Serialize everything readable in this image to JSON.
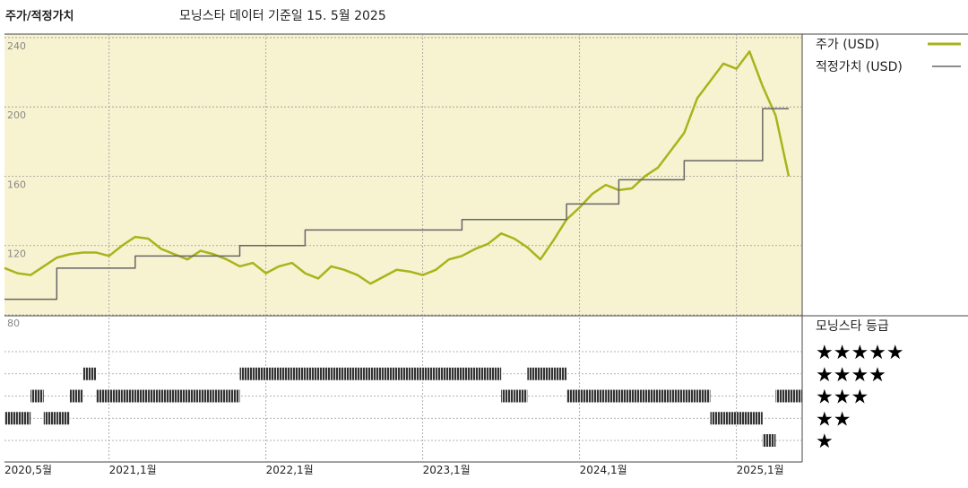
{
  "chart_data": {
    "type": "line",
    "title": "주가/적정가치",
    "subtitle": "모닝스타 데이터 기준일 15. 5월 2025",
    "x": [
      "2020-05",
      "2020-06",
      "2020-07",
      "2020-08",
      "2020-09",
      "2020-10",
      "2020-11",
      "2020-12",
      "2021-01",
      "2021-02",
      "2021-03",
      "2021-04",
      "2021-05",
      "2021-06",
      "2021-07",
      "2021-08",
      "2021-09",
      "2021-10",
      "2021-11",
      "2021-12",
      "2022-01",
      "2022-02",
      "2022-03",
      "2022-04",
      "2022-05",
      "2022-06",
      "2022-07",
      "2022-08",
      "2022-09",
      "2022-10",
      "2022-11",
      "2022-12",
      "2023-01",
      "2023-02",
      "2023-03",
      "2023-04",
      "2023-05",
      "2023-06",
      "2023-07",
      "2023-08",
      "2023-09",
      "2023-10",
      "2023-11",
      "2023-12",
      "2024-01",
      "2024-02",
      "2024-03",
      "2024-04",
      "2024-05",
      "2024-06",
      "2024-07",
      "2024-08",
      "2024-09",
      "2024-10",
      "2024-11",
      "2024-12",
      "2025-01",
      "2025-02",
      "2025-03",
      "2025-04",
      "2025-05"
    ],
    "xticks": [
      {
        "value": "2020-05",
        "label": "2020,5월"
      },
      {
        "value": "2021-01",
        "label": "2021,1월"
      },
      {
        "value": "2022-01",
        "label": "2022,1월"
      },
      {
        "value": "2023-01",
        "label": "2023,1월"
      },
      {
        "value": "2024-01",
        "label": "2024,1월"
      },
      {
        "value": "2025-01",
        "label": "2025,1월"
      }
    ],
    "ylim": [
      80,
      241
    ],
    "yticks": [
      80,
      120,
      160,
      200,
      240
    ],
    "grid": true,
    "series": [
      {
        "name": "주가 (USD)",
        "color": "#a9b31c",
        "values": [
          107,
          104,
          103,
          108,
          113,
          115,
          116,
          116,
          114,
          120,
          125,
          124,
          118,
          115,
          112,
          117,
          115,
          112,
          108,
          110,
          104,
          108,
          110,
          104,
          101,
          108,
          106,
          103,
          98,
          102,
          106,
          105,
          103,
          106,
          112,
          114,
          118,
          121,
          127,
          124,
          119,
          112,
          123,
          135,
          142,
          150,
          155,
          152,
          153,
          160,
          165,
          175,
          185,
          205,
          215,
          225,
          222,
          232,
          212,
          195,
          160
        ]
      },
      {
        "name": "적정가치 (USD)",
        "color": "#666666",
        "step": true,
        "values": [
          89,
          89,
          89,
          89,
          107,
          107,
          107,
          107,
          107,
          107,
          114,
          114,
          114,
          114,
          114,
          114,
          114,
          114,
          120,
          120,
          120,
          120,
          120,
          129,
          129,
          129,
          129,
          129,
          129,
          129,
          129,
          129,
          129,
          129,
          129,
          135,
          135,
          135,
          135,
          135,
          135,
          135,
          135,
          144,
          144,
          144,
          144,
          158,
          158,
          158,
          158,
          158,
          169,
          169,
          169,
          169,
          169,
          169,
          199,
          199,
          199
        ]
      }
    ],
    "rating": {
      "title": "모닝스타 등급",
      "levels": [
        {
          "value": 5,
          "label": "★★★★★"
        },
        {
          "value": 4,
          "label": "★★★★"
        },
        {
          "value": 3,
          "label": "★★★"
        },
        {
          "value": 2,
          "label": "★★"
        },
        {
          "value": 1,
          "label": "★"
        }
      ],
      "values": [
        2,
        2,
        3,
        2,
        2,
        3,
        4,
        3,
        3,
        3,
        3,
        3,
        3,
        3,
        3,
        3,
        3,
        3,
        4,
        4,
        4,
        4,
        4,
        4,
        4,
        4,
        4,
        4,
        4,
        4,
        4,
        4,
        4,
        4,
        4,
        4,
        4,
        4,
        3,
        3,
        4,
        4,
        4,
        3,
        3,
        3,
        3,
        3,
        3,
        3,
        3,
        3,
        3,
        3,
        2,
        2,
        2,
        2,
        1,
        3,
        3
      ]
    }
  }
}
